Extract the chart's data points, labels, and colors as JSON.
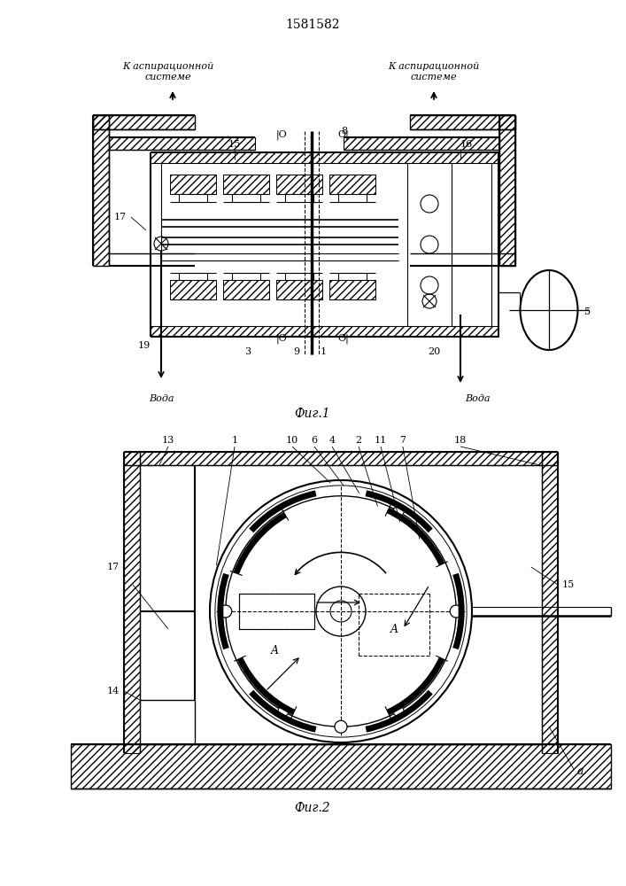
{
  "patent_number": "1581582",
  "fig1_caption": "Фиг.1",
  "fig2_caption": "Фиг.2",
  "aspiration_left": "К аспирационной\nсистеме",
  "aspiration_right": "К аспирационной\nсистеме",
  "voda": "Вода",
  "label_color": "#000000",
  "bg_color": "#ffffff",
  "line_color": "#000000"
}
